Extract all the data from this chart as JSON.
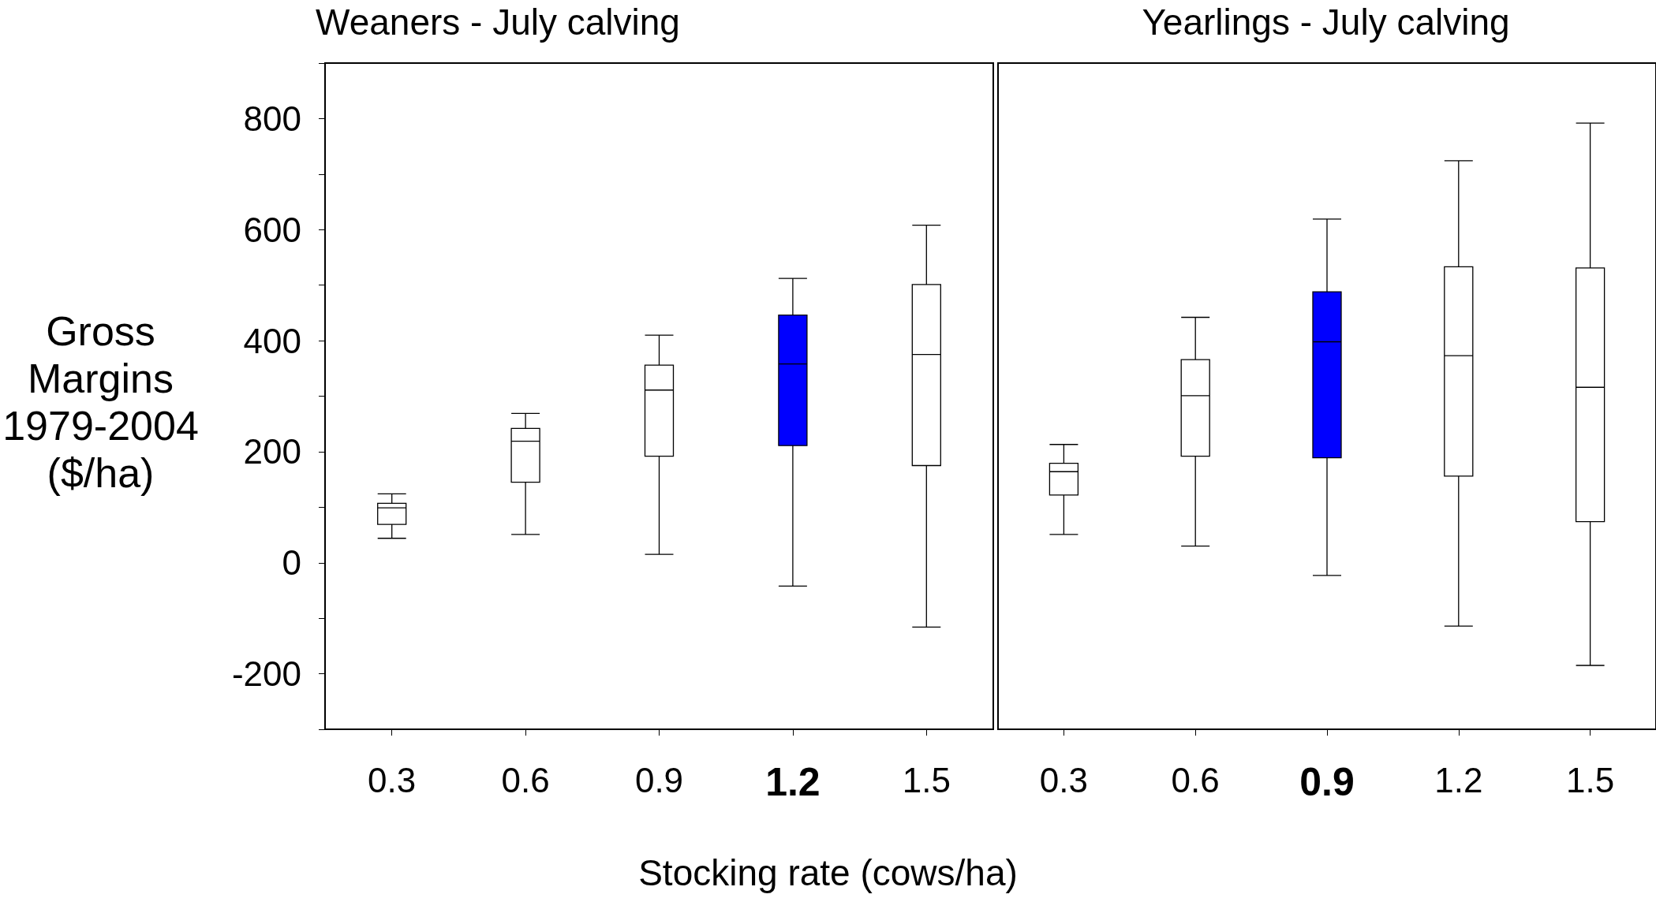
{
  "chart_data": [
    {
      "type": "box",
      "title": "Weaners - July calving",
      "ylabel": "Gross Margins 1979-2004 ($/ha)",
      "xlabel": "Stocking rate (cows/ha)",
      "categories": [
        "0.3",
        "0.6",
        "0.9",
        "1.2",
        "1.5"
      ],
      "colors": [
        "#ffffff",
        "#ffffff",
        "#ffffff",
        "#0000ff",
        "#ffffff"
      ],
      "boxes": [
        {
          "low": 44,
          "q1": 69,
          "median": 99,
          "q3": 107,
          "high": 124
        },
        {
          "low": 51,
          "q1": 145,
          "median": 219,
          "q3": 242,
          "high": 269
        },
        {
          "low": 15,
          "q1": 192,
          "median": 311,
          "q3": 356,
          "high": 410
        },
        {
          "low": -42,
          "q1": 211,
          "median": 358,
          "q3": 446,
          "high": 512
        },
        {
          "low": -116,
          "q1": 175,
          "median": 375,
          "q3": 501,
          "high": 608
        }
      ],
      "ylim": [
        -300,
        900
      ],
      "yticks": [
        {
          "value": -300,
          "label": null
        },
        -200,
        {
          "value": -100,
          "label": null
        },
        0,
        {
          "value": 100,
          "label": null
        },
        200,
        {
          "value": 300,
          "label": null
        },
        400,
        {
          "value": 500,
          "label": null
        },
        600,
        {
          "value": 700,
          "label": null
        },
        800,
        {
          "value": 900,
          "label": null
        }
      ],
      "grid": false
    },
    {
      "type": "box",
      "title": "Yearlings - July calving",
      "categories": [
        "0.3",
        "0.6",
        "0.9",
        "1.2",
        "1.5"
      ],
      "colors": [
        "#ffffff",
        "#ffffff",
        "#0000ff",
        "#ffffff",
        "#ffffff"
      ],
      "boxes": [
        {
          "low": 51,
          "q1": 122,
          "median": 164,
          "q3": 179,
          "high": 213
        },
        {
          "low": 30,
          "q1": 192,
          "median": 301,
          "q3": 366,
          "high": 442
        },
        {
          "low": -23,
          "q1": 189,
          "median": 398,
          "q3": 488,
          "high": 619
        },
        {
          "low": -114,
          "q1": 156,
          "median": 373,
          "q3": 533,
          "high": 724
        },
        {
          "low": -185,
          "q1": 74,
          "median": 316,
          "q3": 531,
          "high": 792
        }
      ],
      "ylim": [
        -300,
        900
      ],
      "tick_labels": "x",
      "grid": false
    }
  ]
}
